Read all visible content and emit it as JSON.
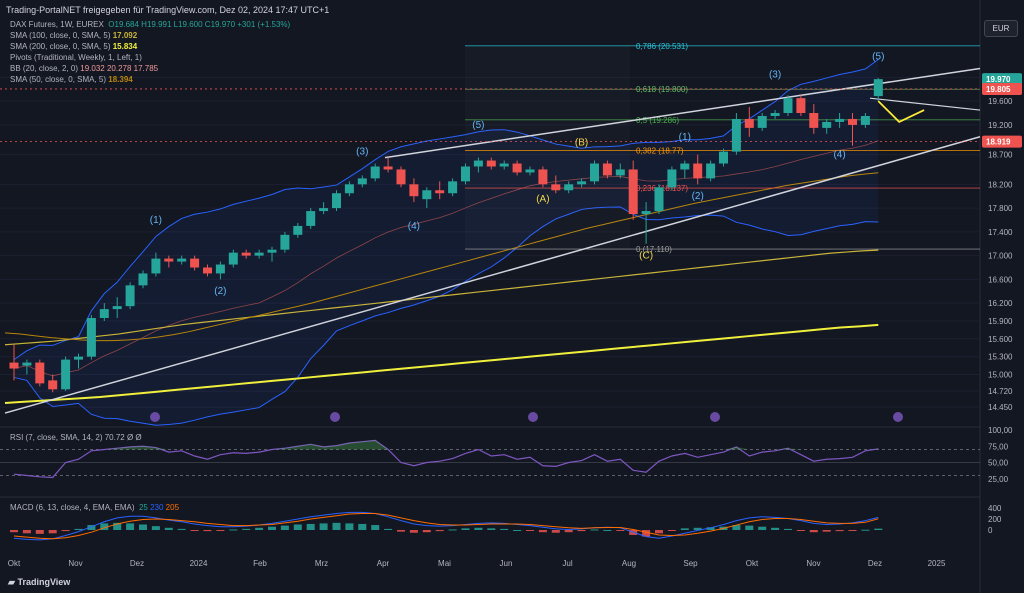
{
  "header": {
    "title": "Trading-PortalNET freigegeben für TradingView.com, Dez 02, 2024 17:47 UTC+1"
  },
  "legend": {
    "symbol": "DAX Futures, 1W, EUREX",
    "ohlc": "O19.684  H19.991  L19.600  C19.970  +301 (+1.53%)",
    "sma100": "SMA (100, close, 0, SMA, 5)",
    "sma100_val": "17.092",
    "sma200": "SMA (200, close, 0, SMA, 5)",
    "sma200_val": "15.834",
    "pivots": "Pivots (Traditional, Weekly, 1, Left, 1)",
    "bb": "BB (20, close, 2, 0)",
    "bb_vals": "19.032  20.278  17.785",
    "sma50": "SMA (50, close, 0, SMA, 5)",
    "sma50_val": "18.394"
  },
  "currency": "EUR",
  "rsi_label": "RSI (7, close, SMA, 14, 2)  70.72  Ø  Ø",
  "macd_label": "MACD (6, 13, close, 4, EMA, EMA)",
  "macd_vals": [
    "25",
    "230",
    "205"
  ],
  "watermark": "TradingView",
  "colors": {
    "up": "#26a69a",
    "down": "#ef5350",
    "bg": "#131722",
    "sma100": "#c9b43a",
    "sma200": "#f0f03c",
    "sma50": "#b8860b",
    "bb": "#2962ff",
    "wave": "#64b5f6",
    "abc": "#f0d848"
  },
  "chart_data": [
    {
      "type": "candlestick",
      "title": "DAX Futures, 1W, EUREX",
      "ylim": [
        14200,
        21100
      ],
      "y_ticks": [
        14450,
        14720,
        15000,
        15300,
        15600,
        15900,
        16200,
        16600,
        17000,
        17400,
        17800,
        18200,
        18700,
        19200,
        19600,
        20000
      ],
      "price_tags": [
        {
          "value": "19.970",
          "color": "#26a69a"
        },
        {
          "value": "19.805",
          "color": "#ef5350"
        },
        {
          "value": "18.919",
          "color": "#ef5350"
        }
      ],
      "x_labels": [
        "Okt",
        "Nov",
        "Dez",
        "2024",
        "Feb",
        "Mrz",
        "Apr",
        "Mai",
        "Jun",
        "Jul",
        "Aug",
        "Sep",
        "Okt",
        "Nov",
        "Dez",
        "2025"
      ],
      "candles": [
        [
          15200,
          15500,
          14900,
          15100
        ],
        [
          15150,
          15250,
          15000,
          15200
        ],
        [
          15200,
          15250,
          14800,
          14850
        ],
        [
          14900,
          15000,
          14700,
          14750
        ],
        [
          14750,
          15300,
          14720,
          15250
        ],
        [
          15250,
          15350,
          15100,
          15300
        ],
        [
          15300,
          16000,
          15250,
          15950
        ],
        [
          15950,
          16200,
          15900,
          16100
        ],
        [
          16100,
          16300,
          15950,
          16150
        ],
        [
          16150,
          16550,
          16100,
          16500
        ],
        [
          16500,
          16750,
          16450,
          16700
        ],
        [
          16700,
          17050,
          16650,
          16950
        ],
        [
          16950,
          17000,
          16800,
          16900
        ],
        [
          16900,
          17000,
          16850,
          16950
        ],
        [
          16950,
          17000,
          16750,
          16800
        ],
        [
          16800,
          16850,
          16650,
          16700
        ],
        [
          16700,
          16900,
          16600,
          16850
        ],
        [
          16850,
          17100,
          16800,
          17050
        ],
        [
          17050,
          17100,
          16950,
          17000
        ],
        [
          17000,
          17100,
          16950,
          17050
        ],
        [
          17050,
          17150,
          16900,
          17100
        ],
        [
          17100,
          17400,
          17050,
          17350
        ],
        [
          17350,
          17550,
          17300,
          17500
        ],
        [
          17500,
          17800,
          17450,
          17750
        ],
        [
          17750,
          17900,
          17700,
          17800
        ],
        [
          17800,
          18100,
          17750,
          18050
        ],
        [
          18050,
          18250,
          18000,
          18200
        ],
        [
          18200,
          18350,
          18150,
          18300
        ],
        [
          18300,
          18550,
          18250,
          18500
        ],
        [
          18500,
          18650,
          18400,
          18450
        ],
        [
          18450,
          18500,
          18150,
          18200
        ],
        [
          18200,
          18300,
          17900,
          18000
        ],
        [
          17950,
          18150,
          17800,
          18100
        ],
        [
          18100,
          18250,
          17950,
          18050
        ],
        [
          18050,
          18300,
          18000,
          18250
        ],
        [
          18250,
          18550,
          18200,
          18500
        ],
        [
          18500,
          18650,
          18400,
          18600
        ],
        [
          18600,
          18650,
          18450,
          18500
        ],
        [
          18500,
          18600,
          18450,
          18550
        ],
        [
          18550,
          18600,
          18350,
          18400
        ],
        [
          18400,
          18500,
          18350,
          18450
        ],
        [
          18450,
          18500,
          18150,
          18200
        ],
        [
          18200,
          18350,
          18050,
          18100
        ],
        [
          18100,
          18250,
          18050,
          18200
        ],
        [
          18200,
          18300,
          18150,
          18250
        ],
        [
          18250,
          18600,
          18200,
          18550
        ],
        [
          18550,
          18600,
          18300,
          18350
        ],
        [
          18350,
          18550,
          18300,
          18450
        ],
        [
          18450,
          18600,
          17600,
          17700
        ],
        [
          17700,
          17900,
          17200,
          17750
        ],
        [
          17750,
          18200,
          17700,
          18150
        ],
        [
          18150,
          18500,
          18100,
          18450
        ],
        [
          18450,
          18600,
          18300,
          18550
        ],
        [
          18550,
          18700,
          18200,
          18300
        ],
        [
          18300,
          18600,
          18250,
          18550
        ],
        [
          18550,
          18800,
          18500,
          18750
        ],
        [
          18750,
          19400,
          18700,
          19300
        ],
        [
          19300,
          19500,
          19000,
          19150
        ],
        [
          19150,
          19400,
          19100,
          19350
        ],
        [
          19350,
          19450,
          19300,
          19400
        ],
        [
          19400,
          19700,
          19350,
          19650
        ],
        [
          19650,
          19700,
          19350,
          19400
        ],
        [
          19400,
          19550,
          19050,
          19150
        ],
        [
          19150,
          19300,
          19050,
          19250
        ],
        [
          19250,
          19400,
          19150,
          19300
        ],
        [
          19300,
          19400,
          18850,
          19200
        ],
        [
          19200,
          19400,
          19150,
          19350
        ],
        [
          19684,
          19991,
          19600,
          19970
        ]
      ],
      "series": [
        {
          "name": "SMA (100, close, 0, SMA, 5)",
          "values": [
            15500,
            15520,
            15540,
            15560,
            15590,
            15620,
            15650,
            15680,
            15720,
            15760,
            15800,
            15840,
            15870,
            15900,
            15930,
            15960,
            15990,
            16020,
            16050,
            16080,
            16110,
            16140,
            16170,
            16200,
            16230,
            16260,
            16290,
            16320,
            16350,
            16380,
            16410,
            16440,
            16470,
            16500,
            16530,
            16560,
            16590,
            16620,
            16650,
            16680,
            16710,
            16740,
            16770,
            16800,
            16830,
            16860,
            16890,
            16920,
            16950,
            16980,
            17010,
            17040,
            17060,
            17080,
            17092
          ]
        },
        {
          "name": "SMA (200, close, 0, SMA, 5)",
          "values": [
            14520,
            14540,
            14560,
            14580,
            14600,
            14620,
            14650,
            14680,
            14710,
            14740,
            14770,
            14800,
            14830,
            14860,
            14890,
            14920,
            14950,
            14980,
            15010,
            15040,
            15070,
            15100,
            15130,
            15160,
            15190,
            15220,
            15250,
            15280,
            15310,
            15340,
            15370,
            15400,
            15430,
            15460,
            15490,
            15520,
            15550,
            15580,
            15610,
            15640,
            15670,
            15700,
            15730,
            15760,
            15790,
            15810,
            15834
          ]
        },
        {
          "name": "SMA (50, close, 0, SMA, 5)",
          "values": [
            15700,
            15680,
            15650,
            15620,
            15600,
            15580,
            15570,
            15570,
            15580,
            15600,
            15630,
            15670,
            15720,
            15780,
            15840,
            15900,
            15960,
            16020,
            16080,
            16140,
            16200,
            16270,
            16340,
            16410,
            16480,
            16550,
            16620,
            16690,
            16760,
            16830,
            16900,
            16970,
            17040,
            17110,
            17180,
            17250,
            17320,
            17390,
            17460,
            17520,
            17580,
            17640,
            17700,
            17760,
            17820,
            17880,
            17930,
            17980,
            18030,
            18080,
            18130,
            18180,
            18220,
            18260,
            18300,
            18340,
            18370,
            18394
          ]
        }
      ],
      "fib_levels": [
        {
          "label": "0,786 (20.531)",
          "value": 20531
        },
        {
          "label": "0,618 (19.800)",
          "value": 19800
        },
        {
          "label": "0,5 (19.286)",
          "value": 19286
        },
        {
          "label": "0,382 (18.77)",
          "value": 18770
        },
        {
          "label": "0,236 (18.137)",
          "value": 18137
        },
        {
          "label": "0 (17.110)",
          "value": 17110
        }
      ],
      "wave_labels": [
        {
          "text": "(1)",
          "i": 11,
          "v": 17550
        },
        {
          "text": "(2)",
          "i": 16,
          "v": 16350
        },
        {
          "text": "(3)",
          "i": 27,
          "v": 18700
        },
        {
          "text": "(4)",
          "i": 31,
          "v": 17450
        },
        {
          "text": "(5)",
          "i": 36,
          "v": 19150
        },
        {
          "text": "(A)",
          "i": 41,
          "v": 17900
        },
        {
          "text": "(B)",
          "i": 44,
          "v": 18850
        },
        {
          "text": "(C)",
          "i": 49,
          "v": 16950
        },
        {
          "text": "(1)",
          "i": 52,
          "v": 18950
        },
        {
          "text": "(2)",
          "i": 53,
          "v": 17950
        },
        {
          "text": "(3)",
          "i": 59,
          "v": 20000
        },
        {
          "text": "(4)",
          "i": 64,
          "v": 18650
        },
        {
          "text": "(5)",
          "i": 67,
          "v": 20300
        }
      ]
    },
    {
      "type": "line",
      "title": "RSI (7, close, SMA, 14, 2)",
      "ylim": [
        0,
        100
      ],
      "y_ticks": [
        "100,00",
        "75,00",
        "50,00",
        "25,00"
      ],
      "values": [
        32,
        30,
        28,
        27,
        50,
        55,
        68,
        70,
        72,
        74,
        75,
        73,
        66,
        68,
        60,
        55,
        62,
        65,
        64,
        66,
        70,
        72,
        75,
        78,
        74,
        76,
        80,
        82,
        84,
        70,
        50,
        45,
        50,
        52,
        56,
        64,
        70,
        60,
        62,
        55,
        58,
        45,
        44,
        50,
        53,
        62,
        52,
        55,
        38,
        35,
        52,
        60,
        64,
        58,
        62,
        66,
        74,
        60,
        66,
        68,
        72,
        62,
        52,
        55,
        56,
        58,
        68,
        71
      ]
    },
    {
      "type": "bar",
      "title": "MACD (6, 13, close, 4, EMA, EMA)",
      "y_ticks": [
        "400",
        "200",
        "0"
      ],
      "values": [
        -40,
        -60,
        -70,
        -60,
        -20,
        20,
        90,
        120,
        130,
        120,
        100,
        70,
        40,
        20,
        -10,
        -20,
        -10,
        10,
        20,
        40,
        60,
        80,
        100,
        110,
        120,
        130,
        120,
        110,
        90,
        20,
        -30,
        -50,
        -40,
        -20,
        10,
        30,
        40,
        30,
        20,
        0,
        -10,
        -40,
        -50,
        -40,
        -20,
        10,
        0,
        -10,
        -90,
        -120,
        -60,
        -10,
        30,
        40,
        50,
        60,
        90,
        80,
        60,
        40,
        20,
        -10,
        -40,
        -30,
        -20,
        -10,
        5,
        25
      ],
      "macd": [
        -150,
        -170,
        -180,
        -160,
        -100,
        -30,
        60,
        150,
        220,
        250,
        250,
        220,
        180,
        150,
        110,
        80,
        60,
        60,
        70,
        90,
        120,
        160,
        200,
        240,
        270,
        300,
        320,
        320,
        300,
        240,
        170,
        110,
        80,
        70,
        80,
        100,
        120,
        130,
        120,
        100,
        80,
        50,
        20,
        10,
        20,
        40,
        50,
        40,
        -40,
        -120,
        -150,
        -110,
        -60,
        -10,
        40,
        100,
        170,
        220,
        240,
        230,
        210,
        170,
        120,
        100,
        110,
        130,
        170,
        230
      ],
      "signal": [
        -110,
        -130,
        -150,
        -160,
        -140,
        -100,
        -40,
        40,
        110,
        160,
        190,
        200,
        190,
        170,
        150,
        120,
        100,
        80,
        80,
        90,
        100,
        130,
        160,
        200,
        230,
        260,
        290,
        300,
        300,
        270,
        220,
        170,
        130,
        100,
        90,
        90,
        100,
        110,
        110,
        110,
        100,
        80,
        60,
        40,
        30,
        40,
        45,
        45,
        10,
        -40,
        -90,
        -100,
        -90,
        -60,
        -20,
        30,
        90,
        150,
        190,
        210,
        210,
        190,
        160,
        130,
        120,
        120,
        140,
        205
      ]
    }
  ]
}
